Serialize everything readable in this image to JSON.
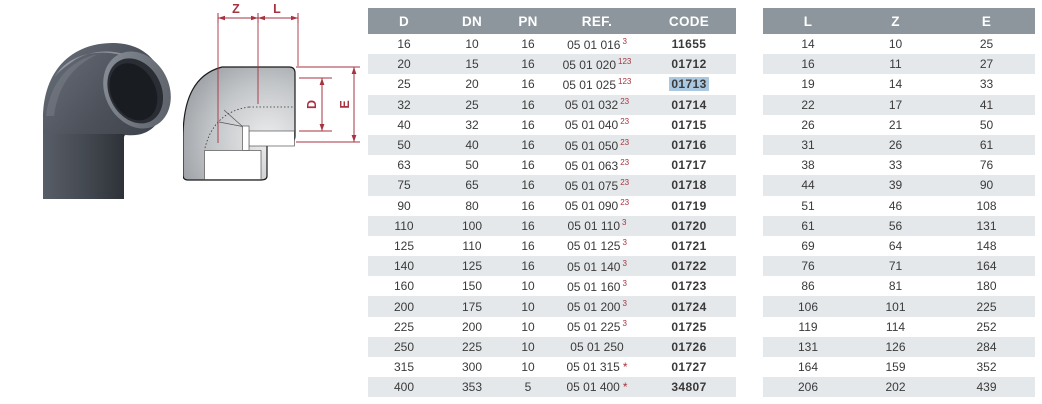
{
  "page": {
    "background": "#ffffff"
  },
  "colors": {
    "table_header_bg": "#8c969c",
    "table_row_alt": "#e5e8ea",
    "ref_mark_red": "#a8333e",
    "selection_highlight": "#aac9e0",
    "dimension_line_red": "#a83240",
    "product_body_gray": "#4c515a"
  },
  "drawing": {
    "labels": {
      "z": "Z",
      "l": "L",
      "d": "D",
      "e": "E"
    }
  },
  "main_table": {
    "headers": [
      "D",
      "DN",
      "PN",
      "REF.",
      "CODE"
    ],
    "rows": [
      {
        "d": "16",
        "dn": "10",
        "pn": "16",
        "ref": "05 01 016",
        "mark": "3",
        "mark_type": "sup",
        "code": "11655",
        "highlight": false
      },
      {
        "d": "20",
        "dn": "15",
        "pn": "16",
        "ref": "05 01 020",
        "mark": "123",
        "mark_type": "sup",
        "code": "01712",
        "highlight": false
      },
      {
        "d": "25",
        "dn": "20",
        "pn": "16",
        "ref": "05 01 025",
        "mark": "123",
        "mark_type": "sup",
        "code": "01713",
        "highlight": true
      },
      {
        "d": "32",
        "dn": "25",
        "pn": "16",
        "ref": "05 01 032",
        "mark": "23",
        "mark_type": "sup",
        "code": "01714",
        "highlight": false
      },
      {
        "d": "40",
        "dn": "32",
        "pn": "16",
        "ref": "05 01 040",
        "mark": "23",
        "mark_type": "sup",
        "code": "01715",
        "highlight": false
      },
      {
        "d": "50",
        "dn": "40",
        "pn": "16",
        "ref": "05 01 050",
        "mark": "23",
        "mark_type": "sup",
        "code": "01716",
        "highlight": false
      },
      {
        "d": "63",
        "dn": "50",
        "pn": "16",
        "ref": "05 01 063",
        "mark": "23",
        "mark_type": "sup",
        "code": "01717",
        "highlight": false
      },
      {
        "d": "75",
        "dn": "65",
        "pn": "16",
        "ref": "05 01 075",
        "mark": "23",
        "mark_type": "sup",
        "code": "01718",
        "highlight": false
      },
      {
        "d": "90",
        "dn": "80",
        "pn": "16",
        "ref": "05 01 090",
        "mark": "23",
        "mark_type": "sup",
        "code": "01719",
        "highlight": false
      },
      {
        "d": "110",
        "dn": "100",
        "pn": "16",
        "ref": "05 01 110",
        "mark": "3",
        "mark_type": "sup",
        "code": "01720",
        "highlight": false
      },
      {
        "d": "125",
        "dn": "110",
        "pn": "16",
        "ref": "05 01 125",
        "mark": "3",
        "mark_type": "sup",
        "code": "01721",
        "highlight": false
      },
      {
        "d": "140",
        "dn": "125",
        "pn": "16",
        "ref": "05 01 140",
        "mark": "3",
        "mark_type": "sup",
        "code": "01722",
        "highlight": false
      },
      {
        "d": "160",
        "dn": "150",
        "pn": "10",
        "ref": "05 01 160",
        "mark": "3",
        "mark_type": "sup",
        "code": "01723",
        "highlight": false
      },
      {
        "d": "200",
        "dn": "175",
        "pn": "10",
        "ref": "05 01 200",
        "mark": "3",
        "mark_type": "sup",
        "code": "01724",
        "highlight": false
      },
      {
        "d": "225",
        "dn": "200",
        "pn": "10",
        "ref": "05 01 225",
        "mark": "3",
        "mark_type": "sup",
        "code": "01725",
        "highlight": false
      },
      {
        "d": "250",
        "dn": "225",
        "pn": "10",
        "ref": "05 01 250",
        "mark": "",
        "mark_type": "none",
        "code": "01726",
        "highlight": false
      },
      {
        "d": "315",
        "dn": "300",
        "pn": "10",
        "ref": "05 01 315",
        "mark": "*",
        "mark_type": "star",
        "code": "01727",
        "highlight": false
      },
      {
        "d": "400",
        "dn": "353",
        "pn": "5",
        "ref": "05 01 400",
        "mark": "*",
        "mark_type": "star",
        "code": "34807",
        "highlight": false
      }
    ]
  },
  "dim_table": {
    "headers": [
      "L",
      "Z",
      "E"
    ],
    "rows": [
      {
        "l": "14",
        "z": "10",
        "e": "25"
      },
      {
        "l": "16",
        "z": "11",
        "e": "27"
      },
      {
        "l": "19",
        "z": "14",
        "e": "33"
      },
      {
        "l": "22",
        "z": "17",
        "e": "41"
      },
      {
        "l": "26",
        "z": "21",
        "e": "50"
      },
      {
        "l": "31",
        "z": "26",
        "e": "61"
      },
      {
        "l": "38",
        "z": "33",
        "e": "76"
      },
      {
        "l": "44",
        "z": "39",
        "e": "90"
      },
      {
        "l": "51",
        "z": "46",
        "e": "108"
      },
      {
        "l": "61",
        "z": "56",
        "e": "131"
      },
      {
        "l": "69",
        "z": "64",
        "e": "148"
      },
      {
        "l": "76",
        "z": "71",
        "e": "164"
      },
      {
        "l": "86",
        "z": "81",
        "e": "180"
      },
      {
        "l": "106",
        "z": "101",
        "e": "225"
      },
      {
        "l": "119",
        "z": "114",
        "e": "252"
      },
      {
        "l": "131",
        "z": "126",
        "e": "284"
      },
      {
        "l": "164",
        "z": "159",
        "e": "352"
      },
      {
        "l": "206",
        "z": "202",
        "e": "439"
      }
    ]
  }
}
